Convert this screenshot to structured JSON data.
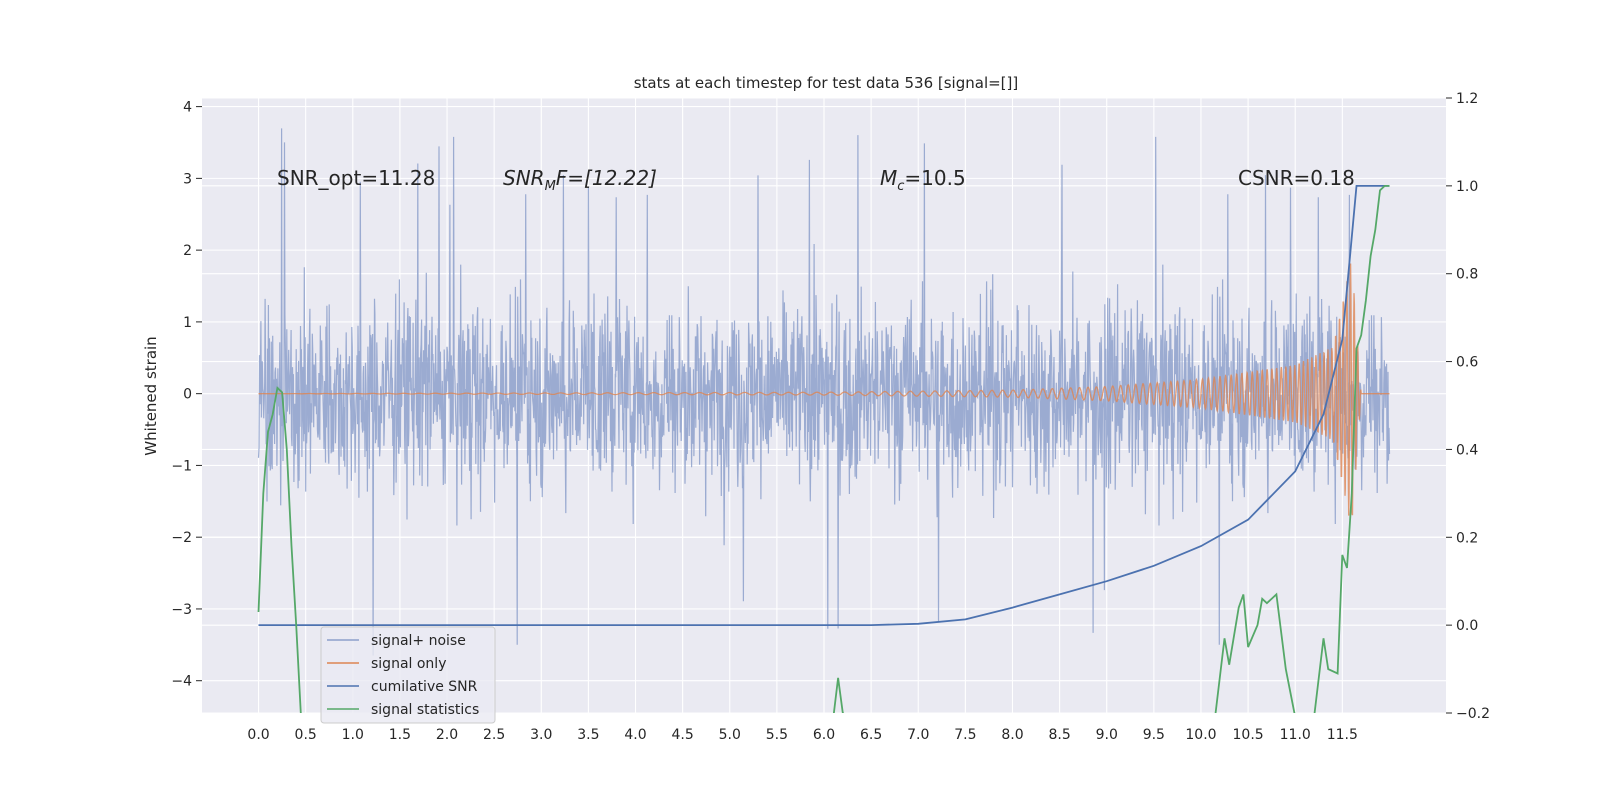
{
  "chart_data": {
    "type": "line",
    "title": "stats at each timestep for test data 536 [signal=[]]",
    "xlabel": "",
    "ylabel": "Whitened strain",
    "xlim": [
      -0.6,
      12.6
    ],
    "ylim": [
      -4.45,
      4.12
    ],
    "y2lim": [
      -0.2,
      1.2
    ],
    "grid": true,
    "legend_position": "lower-left",
    "x_ticks": [
      "0.0",
      "0.5",
      "1.0",
      "1.5",
      "2.0",
      "2.5",
      "3.0",
      "3.5",
      "4.0",
      "4.5",
      "5.0",
      "5.5",
      "6.0",
      "6.5",
      "7.0",
      "7.5",
      "8.0",
      "8.5",
      "9.0",
      "9.5",
      "10.0",
      "10.5",
      "11.0",
      "11.5"
    ],
    "y_ticks": [
      "4",
      "3",
      "2",
      "1",
      "0",
      "−1",
      "−2",
      "−3",
      "−4"
    ],
    "y2_ticks": [
      "1.2",
      "1.0",
      "0.8",
      "0.6",
      "0.4",
      "0.2",
      "0.0",
      "−0.2"
    ],
    "annotations": {
      "snr_opt": "SNR_opt=11.28",
      "snr_mf_base": "SNR",
      "snr_mf_sub": "M",
      "snr_mf_rest": "F=[12.22]",
      "mc_base": "M",
      "mc_sub": "c",
      "mc_rest": "=10.5",
      "csnr": "CSNR=0.18"
    },
    "series": [
      {
        "name": "signal+ noise",
        "axis": "left",
        "color": "#8da0cb",
        "description": "dense noise trace, roughly ±2 envelope with spikes to about ±3.7, t = 0 to 12",
        "t_range": [
          0.0,
          12.0
        ],
        "envelope": [
          [
            0.0,
            1.9,
            -1.9
          ],
          [
            6.0,
            1.9,
            -1.9
          ],
          [
            12.0,
            2.0,
            -2.0
          ]
        ]
      },
      {
        "name": "signal only",
        "axis": "left",
        "color": "#dd8452",
        "points": [
          [
            0.0,
            0.0
          ],
          [
            6.0,
            0.02
          ],
          [
            8.0,
            0.05
          ],
          [
            9.0,
            0.1
          ],
          [
            10.0,
            0.2
          ],
          [
            11.0,
            0.4
          ],
          [
            11.4,
            0.65
          ],
          [
            11.6,
            1.9
          ],
          [
            11.7,
            0.0
          ],
          [
            12.0,
            0.0
          ]
        ]
      },
      {
        "name": "cumilative SNR",
        "axis": "right",
        "color": "#4c72b0",
        "points": [
          [
            0.0,
            0.0
          ],
          [
            1.0,
            0.0
          ],
          [
            2.0,
            0.0
          ],
          [
            3.0,
            0.0
          ],
          [
            4.0,
            0.0
          ],
          [
            5.0,
            0.0
          ],
          [
            6.0,
            0.0
          ],
          [
            6.5,
            0.0
          ],
          [
            7.0,
            0.003
          ],
          [
            7.5,
            0.013
          ],
          [
            8.0,
            0.04
          ],
          [
            8.5,
            0.07
          ],
          [
            9.0,
            0.1
          ],
          [
            9.5,
            0.135
          ],
          [
            10.0,
            0.18
          ],
          [
            10.5,
            0.24
          ],
          [
            11.0,
            0.35
          ],
          [
            11.3,
            0.48
          ],
          [
            11.5,
            0.65
          ],
          [
            11.65,
            1.0
          ],
          [
            12.0,
            1.0
          ]
        ]
      },
      {
        "name": "signal statistics",
        "axis": "right",
        "color": "#55a868",
        "points": [
          [
            0.0,
            0.03
          ],
          [
            0.05,
            0.3
          ],
          [
            0.1,
            0.44
          ],
          [
            0.15,
            0.48
          ],
          [
            0.2,
            0.54
          ],
          [
            0.25,
            0.53
          ],
          [
            0.3,
            0.4
          ],
          [
            0.35,
            0.18
          ],
          [
            0.4,
            0.0
          ],
          [
            0.45,
            -0.22
          ],
          [
            null,
            null
          ],
          [
            6.1,
            -0.25
          ],
          [
            6.15,
            -0.12
          ],
          [
            6.2,
            -0.2
          ],
          [
            6.25,
            -0.25
          ],
          [
            null,
            null
          ],
          [
            10.15,
            -0.25
          ],
          [
            10.25,
            -0.03
          ],
          [
            10.3,
            -0.09
          ],
          [
            10.4,
            0.04
          ],
          [
            10.45,
            0.07
          ],
          [
            10.5,
            -0.05
          ],
          [
            10.6,
            0.0
          ],
          [
            10.65,
            0.06
          ],
          [
            10.7,
            0.05
          ],
          [
            10.8,
            0.07
          ],
          [
            10.9,
            -0.1
          ],
          [
            11.0,
            -0.25
          ],
          [
            null,
            null
          ],
          [
            11.2,
            -0.25
          ],
          [
            11.3,
            -0.03
          ],
          [
            11.35,
            -0.1
          ],
          [
            11.45,
            -0.11
          ],
          [
            11.5,
            0.16
          ],
          [
            11.55,
            0.13
          ],
          [
            11.6,
            0.3
          ],
          [
            11.65,
            0.63
          ],
          [
            11.7,
            0.66
          ],
          [
            11.75,
            0.74
          ],
          [
            11.8,
            0.84
          ],
          [
            11.85,
            0.9
          ],
          [
            11.9,
            0.99
          ],
          [
            11.95,
            1.0
          ],
          [
            12.0,
            1.0
          ]
        ]
      }
    ]
  }
}
